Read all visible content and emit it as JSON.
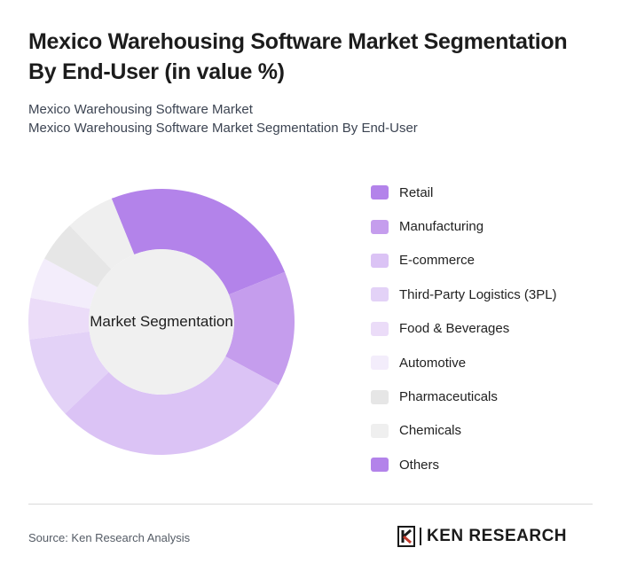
{
  "header": {
    "title": "Mexico Warehousing Software Market Segmentation By End-User (in value %)",
    "subtitle_line1": "Mexico Warehousing Software Market",
    "subtitle_line2": "Mexico Warehousing Software Market Segmentation By End-User"
  },
  "chart_data": {
    "type": "pie",
    "title": "Market Segmentation",
    "categories": [
      "Retail",
      "Manufacturing",
      "E-commerce",
      "Third-Party Logistics (3PL)",
      "Food & Beverages",
      "Automotive",
      "Pharmaceuticals",
      "Chemicals",
      "Others"
    ],
    "values": [
      25,
      14,
      30,
      10,
      5,
      5,
      5,
      6,
      0
    ],
    "colors": [
      "#b383ea",
      "#c59ded",
      "#dbc3f5",
      "#e3d2f7",
      "#ebdcf8",
      "#f3edfb",
      "#e6e6e6",
      "#efefef",
      "#b383ea"
    ],
    "legend_position": "right"
  },
  "footer": {
    "source": "Source: Ken Research Analysis",
    "logo_text": "KEN RESEARCH"
  }
}
